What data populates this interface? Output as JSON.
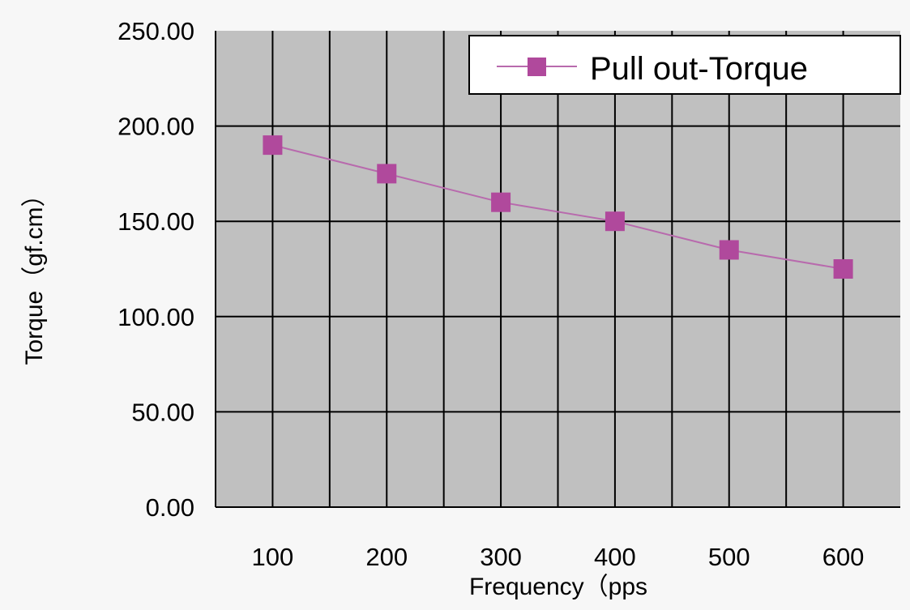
{
  "chart_data": {
    "type": "line",
    "xlabel": "Frequency（pps",
    "ylabel": "Torque（gf.cm）",
    "categories": [
      "100",
      "200",
      "300",
      "400",
      "500",
      "600"
    ],
    "y_ticks": [
      "0.00",
      "50.00",
      "100.00",
      "150.00",
      "200.00",
      "250.00"
    ],
    "ylim": [
      0,
      250
    ],
    "series": [
      {
        "name": "Pull out-Torque",
        "values": [
          190,
          175,
          160,
          150,
          135,
          125
        ]
      }
    ],
    "grid": true,
    "legend_position": "top-right",
    "colors": {
      "series": "#b0499c",
      "series_line": "#b86aad",
      "plot_background": "#c0c0c0",
      "gridline": "#000000",
      "page_background": "#f7f7f7"
    }
  }
}
